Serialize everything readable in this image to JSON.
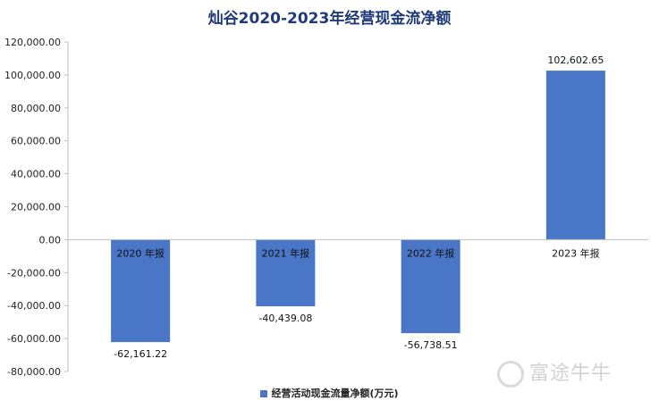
{
  "chart_data": {
    "type": "bar",
    "title": "灿谷2020-2023年经营现金流净额",
    "categories": [
      "2020 年报",
      "2021 年报",
      "2022 年报",
      "2023 年报"
    ],
    "series": [
      {
        "name": "经营活动现金流量净额(万元)",
        "values": [
          -62161.22,
          -40439.08,
          -56738.51,
          102602.65
        ],
        "data_labels": [
          "-62,161.22",
          "-40,439.08",
          "-56,738.51",
          "102,602.65"
        ],
        "color": "#4a76c8"
      }
    ],
    "ylim": [
      -80000,
      120000
    ],
    "yticks": [
      120000,
      100000,
      80000,
      60000,
      40000,
      20000,
      0,
      -20000,
      -40000,
      -60000,
      -80000
    ],
    "ytick_labels": [
      "120,000.00",
      "100,000.00",
      "80,000.00",
      "60,000.00",
      "40,000.00",
      "20,000.00",
      "0.00",
      "-20,000.00",
      "-40,000.00",
      "-60,000.00",
      "-80,000.00"
    ],
    "grid": false,
    "legend": "bottom",
    "xlabel": "",
    "ylabel": ""
  },
  "watermark": {
    "text": "富途牛牛",
    "icon": "futu-logo-icon"
  }
}
